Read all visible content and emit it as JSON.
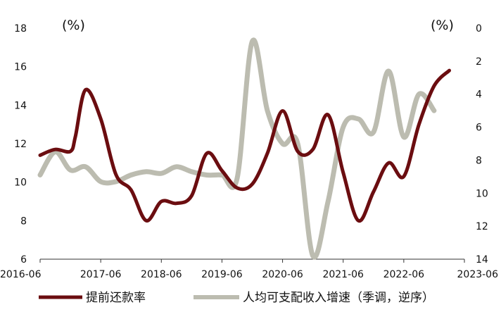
{
  "chart_data": {
    "type": "line",
    "title": "",
    "xlabel": "",
    "ylabel_left": "(%)",
    "ylabel_right": "(%)",
    "x_tick_labels": [
      "2016-06",
      "2017-06",
      "2018-06",
      "2019-06",
      "2020-06",
      "2021-06",
      "2022-06",
      "2023-06"
    ],
    "y_left": {
      "lim": [
        6,
        18
      ],
      "ticks": [
        6,
        8,
        10,
        12,
        14,
        16,
        18
      ]
    },
    "y_right": {
      "lim": [
        0,
        14
      ],
      "ticks": [
        0,
        2,
        4,
        6,
        8,
        10,
        12,
        14
      ],
      "inverted": true
    },
    "grid": false,
    "legend_position": "bottom",
    "series": [
      {
        "name": "提前还款率",
        "axis": "left",
        "color": "#6b0d10",
        "points": [
          [
            "2016-06",
            11.4
          ],
          [
            "2016-09",
            11.7
          ],
          [
            "2016-12",
            11.6
          ],
          [
            "2017-01",
            12.4
          ],
          [
            "2017-03",
            14.8
          ],
          [
            "2017-06",
            13.3
          ],
          [
            "2017-09",
            10.4
          ],
          [
            "2017-12",
            9.6
          ],
          [
            "2018-03",
            8.0
          ],
          [
            "2018-06",
            9.0
          ],
          [
            "2018-09",
            8.9
          ],
          [
            "2018-12",
            9.3
          ],
          [
            "2019-03",
            11.5
          ],
          [
            "2019-06",
            10.6
          ],
          [
            "2019-09",
            9.7
          ],
          [
            "2019-12",
            9.9
          ],
          [
            "2020-03",
            11.5
          ],
          [
            "2020-06",
            13.7
          ],
          [
            "2020-09",
            11.6
          ],
          [
            "2020-12",
            11.7
          ],
          [
            "2021-03",
            13.5
          ],
          [
            "2021-06",
            10.5
          ],
          [
            "2021-09",
            8.0
          ],
          [
            "2021-12",
            9.5
          ],
          [
            "2022-03",
            11.0
          ],
          [
            "2022-06",
            10.3
          ],
          [
            "2022-09",
            13.0
          ],
          [
            "2022-12",
            15.0
          ],
          [
            "2023-03",
            15.8
          ]
        ]
      },
      {
        "name": "人均可支配收入增速（季调，逆序）",
        "axis": "right",
        "color": "#bcbcb0",
        "points": [
          [
            "2016-06",
            8.9
          ],
          [
            "2016-09",
            7.5
          ],
          [
            "2016-12",
            8.6
          ],
          [
            "2017-03",
            8.4
          ],
          [
            "2017-06",
            9.3
          ],
          [
            "2017-09",
            9.3
          ],
          [
            "2017-12",
            8.9
          ],
          [
            "2018-03",
            8.7
          ],
          [
            "2018-06",
            8.8
          ],
          [
            "2018-09",
            8.4
          ],
          [
            "2018-12",
            8.7
          ],
          [
            "2019-03",
            8.9
          ],
          [
            "2019-06",
            8.9
          ],
          [
            "2019-09",
            9.1
          ],
          [
            "2019-12",
            0.8
          ],
          [
            "2020-03",
            5.0
          ],
          [
            "2020-06",
            7.0
          ],
          [
            "2020-09",
            7.0
          ],
          [
            "2020-12",
            13.8
          ],
          [
            "2021-03",
            10.5
          ],
          [
            "2021-06",
            6.0
          ],
          [
            "2021-09",
            5.5
          ],
          [
            "2021-12",
            6.3
          ],
          [
            "2022-03",
            2.6
          ],
          [
            "2022-06",
            6.6
          ],
          [
            "2022-09",
            4.0
          ],
          [
            "2022-12",
            5.0
          ]
        ]
      }
    ]
  }
}
